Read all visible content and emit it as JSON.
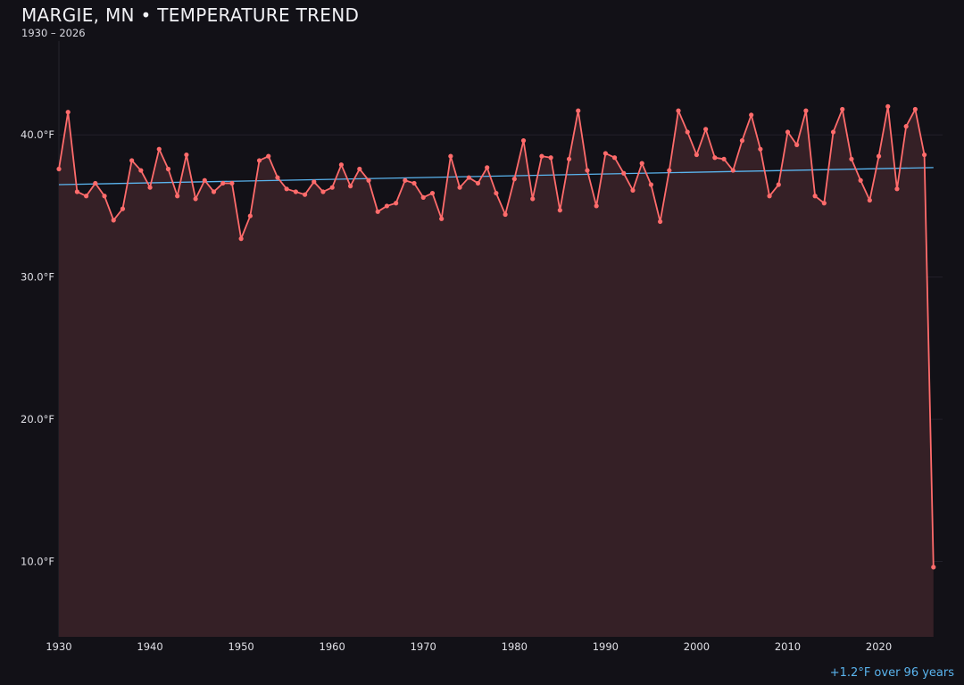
{
  "chart_data": {
    "type": "line",
    "title": "MARGIE, MN • TEMPERATURE TREND",
    "subtitle": "1930 – 2026",
    "xlabel": "",
    "ylabel": "",
    "xlim": [
      1930,
      2027
    ],
    "ylim": [
      4.7,
      46.6
    ],
    "x_ticks": [
      1930,
      1940,
      1950,
      1960,
      1970,
      1980,
      1990,
      2000,
      2010,
      2020
    ],
    "y_ticks": [
      10,
      20,
      30,
      40
    ],
    "y_tick_labels": [
      "10.0°F",
      "20.0°F",
      "30.0°F",
      "40.0°F"
    ],
    "grid": "horizontal",
    "x": [
      1930,
      1931,
      1932,
      1933,
      1934,
      1935,
      1936,
      1937,
      1938,
      1939,
      1940,
      1941,
      1942,
      1943,
      1944,
      1945,
      1946,
      1947,
      1948,
      1949,
      1950,
      1951,
      1952,
      1953,
      1954,
      1955,
      1956,
      1957,
      1958,
      1959,
      1960,
      1961,
      1962,
      1963,
      1964,
      1965,
      1966,
      1967,
      1968,
      1969,
      1970,
      1971,
      1972,
      1973,
      1974,
      1975,
      1976,
      1977,
      1978,
      1979,
      1980,
      1981,
      1982,
      1983,
      1984,
      1985,
      1986,
      1987,
      1988,
      1989,
      1990,
      1991,
      1992,
      1993,
      1994,
      1995,
      1996,
      1997,
      1998,
      1999,
      2000,
      2001,
      2002,
      2003,
      2004,
      2005,
      2006,
      2007,
      2008,
      2009,
      2010,
      2011,
      2012,
      2013,
      2014,
      2015,
      2016,
      2017,
      2018,
      2019,
      2020,
      2021,
      2022,
      2023,
      2024,
      2025,
      2026
    ],
    "series": [
      {
        "color": "#ff6b6b",
        "fill": "#352026",
        "values": [
          37.6,
          41.6,
          36.0,
          35.7,
          36.6,
          35.7,
          34.0,
          34.8,
          38.2,
          37.5,
          36.3,
          39.0,
          37.6,
          35.7,
          38.6,
          35.5,
          36.8,
          36.0,
          36.6,
          36.6,
          32.7,
          34.3,
          38.2,
          38.5,
          37.0,
          36.2,
          36.0,
          35.8,
          36.7,
          36.0,
          36.3,
          37.9,
          36.4,
          37.6,
          36.8,
          34.6,
          35.0,
          35.2,
          36.8,
          36.6,
          35.6,
          35.9,
          34.1,
          38.5,
          36.3,
          37.0,
          36.6,
          37.7,
          35.9,
          34.4,
          36.9,
          39.6,
          35.5,
          38.5,
          38.4,
          34.7,
          38.3,
          41.7,
          37.5,
          35.0,
          38.7,
          38.4,
          37.3,
          36.1,
          38.0,
          36.5,
          33.9,
          37.5,
          41.7,
          40.2,
          38.6,
          40.4,
          38.4,
          38.3,
          37.5,
          39.6,
          41.4,
          39.0,
          35.7,
          36.5,
          40.2,
          39.3,
          41.7,
          35.7,
          35.2,
          40.2,
          41.8,
          38.3,
          36.8,
          35.4,
          38.5,
          42.0,
          36.2,
          40.6,
          41.8,
          38.6,
          9.6
        ]
      }
    ],
    "trend": {
      "color": "#5ab4ee",
      "x": [
        1930,
        2026
      ],
      "y": [
        36.5,
        37.7
      ]
    },
    "annotation": "+1.2°F over 96 years"
  }
}
